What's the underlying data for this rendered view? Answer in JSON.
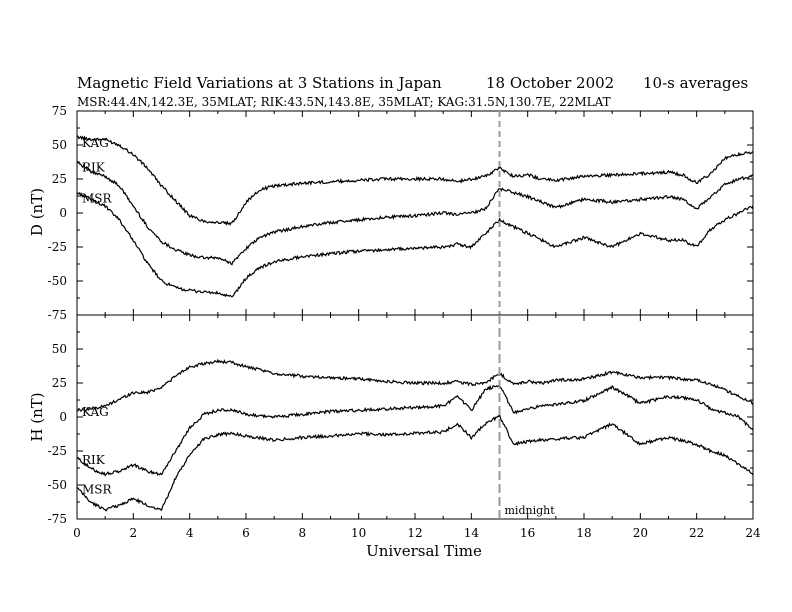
{
  "header": {
    "title_left": "Magnetic Field Variations at 3 Stations in Japan",
    "title_date": "18  October 2002",
    "title_right": "10-s averages",
    "subtitle": "MSR:44.4N,142.3E, 35MLAT;   RIK:43.5N,143.8E, 35MLAT;   KAG:31.5N,130.7E, 22MLAT"
  },
  "chart_data": [
    {
      "type": "line",
      "panel": "top",
      "ylabel": "D (nT)",
      "ylim": [
        -75,
        75
      ],
      "yticks": [
        75,
        50,
        25,
        0,
        -25,
        -50,
        -75
      ],
      "xlim": [
        0,
        24
      ],
      "grid": false,
      "series": [
        {
          "name": "KAG",
          "x": [
            0,
            0.5,
            1,
            1.5,
            2,
            2.5,
            3,
            3.5,
            4,
            4.5,
            5,
            5.5,
            6,
            6.5,
            7,
            8,
            9,
            10,
            11,
            12,
            13,
            13.5,
            14,
            14.5,
            15,
            15.5,
            16,
            16.5,
            17,
            18,
            19,
            20,
            21,
            21.5,
            22,
            22.5,
            23,
            23.5,
            24
          ],
          "y": [
            56,
            54,
            54,
            50,
            43,
            33,
            20,
            9,
            -2,
            -6,
            -7,
            -8,
            8,
            17,
            20,
            22,
            23,
            24,
            25,
            25,
            25,
            23,
            25,
            27,
            33,
            27,
            28,
            25,
            24,
            27,
            28,
            29,
            30,
            28,
            22,
            29,
            40,
            43,
            45
          ]
        },
        {
          "name": "RIK",
          "x": [
            0,
            0.5,
            1,
            1.5,
            2,
            2.5,
            3,
            3.5,
            4,
            4.5,
            5,
            5.5,
            6,
            6.5,
            7,
            8,
            9,
            10,
            11,
            12,
            13,
            13.5,
            14,
            14.5,
            15,
            15.5,
            16,
            16.5,
            17,
            18,
            19,
            20,
            21,
            21.5,
            22,
            22.5,
            23,
            23.5,
            24
          ],
          "y": [
            38,
            30,
            27,
            20,
            5,
            -10,
            -21,
            -27,
            -31,
            -33,
            -33,
            -37,
            -26,
            -18,
            -14,
            -10,
            -7,
            -5,
            -3,
            -2,
            0,
            -1,
            0,
            3,
            18,
            15,
            12,
            8,
            4,
            10,
            8,
            10,
            12,
            10,
            3,
            12,
            21,
            25,
            27
          ]
        },
        {
          "name": "MSR",
          "x": [
            0,
            0.5,
            1,
            1.5,
            2,
            2.5,
            3,
            3.5,
            4,
            4.5,
            5,
            5.5,
            6,
            6.5,
            7,
            8,
            9,
            10,
            11,
            12,
            13,
            13.5,
            14,
            14.5,
            15,
            15.5,
            16,
            16.5,
            17,
            18,
            19,
            20,
            21,
            21.5,
            22,
            22.5,
            23,
            23.5,
            24
          ],
          "y": [
            15,
            10,
            5,
            -5,
            -20,
            -37,
            -50,
            -55,
            -57,
            -58,
            -59,
            -62,
            -48,
            -40,
            -36,
            -32,
            -30,
            -28,
            -27,
            -26,
            -25,
            -23,
            -25,
            -15,
            -5,
            -10,
            -15,
            -20,
            -25,
            -18,
            -25,
            -15,
            -20,
            -20,
            -25,
            -12,
            -5,
            0,
            5
          ]
        }
      ]
    },
    {
      "type": "line",
      "panel": "bottom",
      "ylabel": "H (nT)",
      "ylim": [
        -75,
        75
      ],
      "yticks": [
        50,
        25,
        0,
        -25,
        -50,
        -75
      ],
      "xlim": [
        0,
        24
      ],
      "xticks": [
        0,
        2,
        4,
        6,
        8,
        10,
        12,
        14,
        16,
        18,
        20,
        22,
        24
      ],
      "xlabel": "Universal Time",
      "grid": false,
      "series": [
        {
          "name": "KAG",
          "x": [
            0,
            0.5,
            1,
            1.5,
            2,
            2.5,
            3,
            3.5,
            4,
            4.5,
            5,
            5.5,
            6,
            7,
            8,
            9,
            10,
            11,
            12,
            13,
            13.5,
            14,
            14.5,
            15,
            15.5,
            16,
            16.5,
            17,
            18,
            19,
            20,
            21,
            22,
            22.5,
            23,
            23.5,
            24
          ],
          "y": [
            5,
            6,
            8,
            13,
            18,
            18,
            22,
            30,
            37,
            39,
            41,
            40,
            37,
            32,
            30,
            29,
            28,
            26,
            25,
            25,
            26,
            24,
            25,
            32,
            24,
            26,
            25,
            27,
            28,
            33,
            29,
            29,
            27,
            24,
            20,
            15,
            10
          ]
        },
        {
          "name": "RIK",
          "x": [
            0,
            0.5,
            1,
            1.5,
            2,
            2.5,
            3,
            3.5,
            4,
            4.5,
            5,
            5.5,
            6,
            7,
            8,
            9,
            10,
            11,
            12,
            13,
            13.5,
            14,
            14.5,
            15,
            15.5,
            16,
            16.5,
            17,
            18,
            19,
            20,
            21,
            22,
            22.5,
            23,
            23.5,
            24
          ],
          "y": [
            -30,
            -38,
            -42,
            -40,
            -35,
            -40,
            -42,
            -25,
            -8,
            2,
            5,
            5,
            2,
            0,
            2,
            4,
            5,
            6,
            7,
            8,
            15,
            5,
            20,
            24,
            3,
            6,
            8,
            9,
            12,
            22,
            10,
            15,
            13,
            6,
            3,
            0,
            -10
          ]
        },
        {
          "name": "MSR",
          "x": [
            0,
            0.5,
            1,
            1.5,
            2,
            2.5,
            3,
            3.5,
            4,
            4.5,
            5,
            5.5,
            6,
            7,
            8,
            9,
            10,
            11,
            12,
            13,
            13.5,
            14,
            14.5,
            15,
            15.5,
            16,
            16.5,
            17,
            18,
            19,
            20,
            21,
            22,
            22.5,
            23,
            23.5,
            24
          ],
          "y": [
            -52,
            -63,
            -68,
            -65,
            -60,
            -65,
            -68,
            -45,
            -28,
            -16,
            -13,
            -12,
            -14,
            -17,
            -15,
            -14,
            -12,
            -13,
            -12,
            -11,
            -5,
            -15,
            -5,
            1,
            -20,
            -18,
            -17,
            -16,
            -15,
            -5,
            -20,
            -15,
            -20,
            -25,
            -28,
            -35,
            -42
          ]
        }
      ]
    }
  ],
  "annotations": {
    "midnight_x": 15,
    "midnight_label": "midnight"
  }
}
